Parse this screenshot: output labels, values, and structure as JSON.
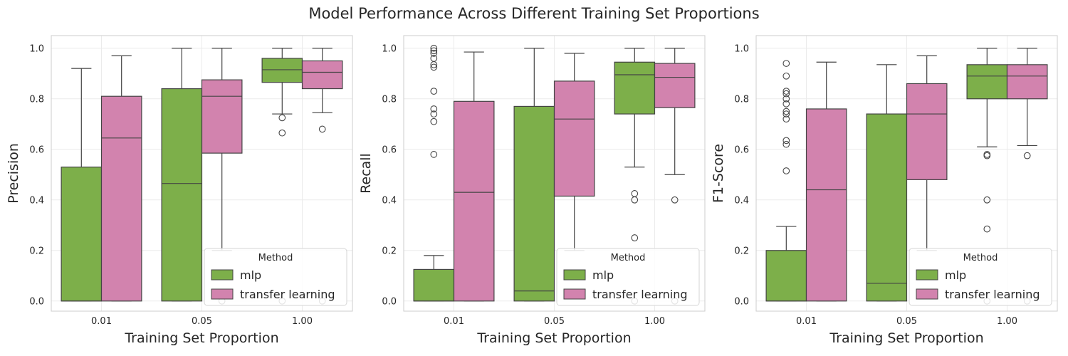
{
  "figure": {
    "title": "Model Performance Across Different Training Set Proportions"
  },
  "colors": {
    "mlp": "#7daf4a",
    "transfer_learning": "#d283ae",
    "box_edge": "#444444",
    "grid": "#ebebeb",
    "spine": "#cccccc",
    "text": "#262626"
  },
  "chart_data": [
    {
      "type": "box",
      "xlabel": "Training Set Proportion",
      "ylabel": "Precision",
      "categories": [
        "0.01",
        "0.05",
        "1.00"
      ],
      "ylim": [
        -0.04,
        1.05
      ],
      "yticks": [
        "0.0",
        "0.2",
        "0.4",
        "0.6",
        "0.8",
        "1.0"
      ],
      "grid": true,
      "legend": {
        "title": "Method",
        "placement": "lower-right",
        "entries": [
          "mlp",
          "transfer learning"
        ]
      },
      "series": [
        {
          "name": "mlp",
          "boxes": [
            {
              "whisker_low": 0.0,
              "q1": 0.0,
              "median": 0.0,
              "q3": 0.53,
              "whisker_high": 0.92,
              "outliers": []
            },
            {
              "whisker_low": 0.0,
              "q1": 0.0,
              "median": 0.465,
              "q3": 0.84,
              "whisker_high": 1.0,
              "outliers": []
            },
            {
              "whisker_low": 0.74,
              "q1": 0.865,
              "median": 0.915,
              "q3": 0.96,
              "whisker_high": 1.0,
              "outliers": [
                0.725,
                0.665,
                0.0
              ]
            }
          ]
        },
        {
          "name": "transfer learning",
          "boxes": [
            {
              "whisker_low": 0.0,
              "q1": 0.0,
              "median": 0.645,
              "q3": 0.81,
              "whisker_high": 0.97,
              "outliers": []
            },
            {
              "whisker_low": 0.2,
              "q1": 0.585,
              "median": 0.81,
              "q3": 0.875,
              "whisker_high": 1.0,
              "outliers": [
                0.0
              ]
            },
            {
              "whisker_low": 0.745,
              "q1": 0.84,
              "median": 0.905,
              "q3": 0.95,
              "whisker_high": 1.0,
              "outliers": [
                0.68,
                0.0
              ]
            }
          ]
        }
      ]
    },
    {
      "type": "box",
      "xlabel": "Training Set Proportion",
      "ylabel": "Recall",
      "categories": [
        "0.01",
        "0.05",
        "1.00"
      ],
      "ylim": [
        -0.04,
        1.05
      ],
      "yticks": [
        "0.0",
        "0.2",
        "0.4",
        "0.6",
        "0.8",
        "1.0"
      ],
      "grid": true,
      "legend": {
        "title": "Method",
        "placement": "lower-right",
        "entries": [
          "mlp",
          "transfer learning"
        ]
      },
      "series": [
        {
          "name": "mlp",
          "boxes": [
            {
              "whisker_low": 0.0,
              "q1": 0.0,
              "median": 0.0,
              "q3": 0.125,
              "whisker_high": 0.18,
              "outliers": [
                1.0,
                0.99,
                0.98,
                0.96,
                0.935,
                0.925,
                0.83,
                0.76,
                0.74,
                0.71,
                0.58
              ]
            },
            {
              "whisker_low": 0.0,
              "q1": 0.0,
              "median": 0.04,
              "q3": 0.77,
              "whisker_high": 1.0,
              "outliers": []
            },
            {
              "whisker_low": 0.53,
              "q1": 0.74,
              "median": 0.895,
              "q3": 0.945,
              "whisker_high": 1.0,
              "outliers": [
                0.425,
                0.4,
                0.25,
                0.0
              ]
            }
          ]
        },
        {
          "name": "transfer learning",
          "boxes": [
            {
              "whisker_low": 0.0,
              "q1": 0.0,
              "median": 0.43,
              "q3": 0.79,
              "whisker_high": 0.985,
              "outliers": []
            },
            {
              "whisker_low": 0.2,
              "q1": 0.415,
              "median": 0.72,
              "q3": 0.87,
              "whisker_high": 0.98,
              "outliers": []
            },
            {
              "whisker_low": 0.5,
              "q1": 0.765,
              "median": 0.885,
              "q3": 0.94,
              "whisker_high": 1.0,
              "outliers": [
                0.4,
                0.0
              ]
            }
          ]
        }
      ]
    },
    {
      "type": "box",
      "xlabel": "Training Set Proportion",
      "ylabel": "F1-Score",
      "categories": [
        "0.01",
        "0.05",
        "1.00"
      ],
      "ylim": [
        -0.04,
        1.05
      ],
      "yticks": [
        "0.0",
        "0.2",
        "0.4",
        "0.6",
        "0.8",
        "1.0"
      ],
      "grid": true,
      "legend": {
        "title": "Method",
        "placement": "lower-right",
        "entries": [
          "mlp",
          "transfer learning"
        ]
      },
      "series": [
        {
          "name": "mlp",
          "boxes": [
            {
              "whisker_low": 0.0,
              "q1": 0.0,
              "median": 0.0,
              "q3": 0.2,
              "whisker_high": 0.295,
              "outliers": [
                0.94,
                0.89,
                0.83,
                0.82,
                0.8,
                0.78,
                0.75,
                0.74,
                0.72,
                0.635,
                0.62,
                0.515
              ]
            },
            {
              "whisker_low": 0.0,
              "q1": 0.0,
              "median": 0.07,
              "q3": 0.74,
              "whisker_high": 0.935,
              "outliers": []
            },
            {
              "whisker_low": 0.61,
              "q1": 0.8,
              "median": 0.89,
              "q3": 0.935,
              "whisker_high": 1.0,
              "outliers": [
                0.58,
                0.575,
                0.4,
                0.285,
                0.0
              ]
            }
          ]
        },
        {
          "name": "transfer learning",
          "boxes": [
            {
              "whisker_low": 0.0,
              "q1": 0.0,
              "median": 0.44,
              "q3": 0.76,
              "whisker_high": 0.945,
              "outliers": []
            },
            {
              "whisker_low": 0.2,
              "q1": 0.48,
              "median": 0.74,
              "q3": 0.86,
              "whisker_high": 0.97,
              "outliers": []
            },
            {
              "whisker_low": 0.615,
              "q1": 0.8,
              "median": 0.89,
              "q3": 0.935,
              "whisker_high": 1.0,
              "outliers": [
                0.575,
                0.0
              ]
            }
          ]
        }
      ]
    }
  ]
}
